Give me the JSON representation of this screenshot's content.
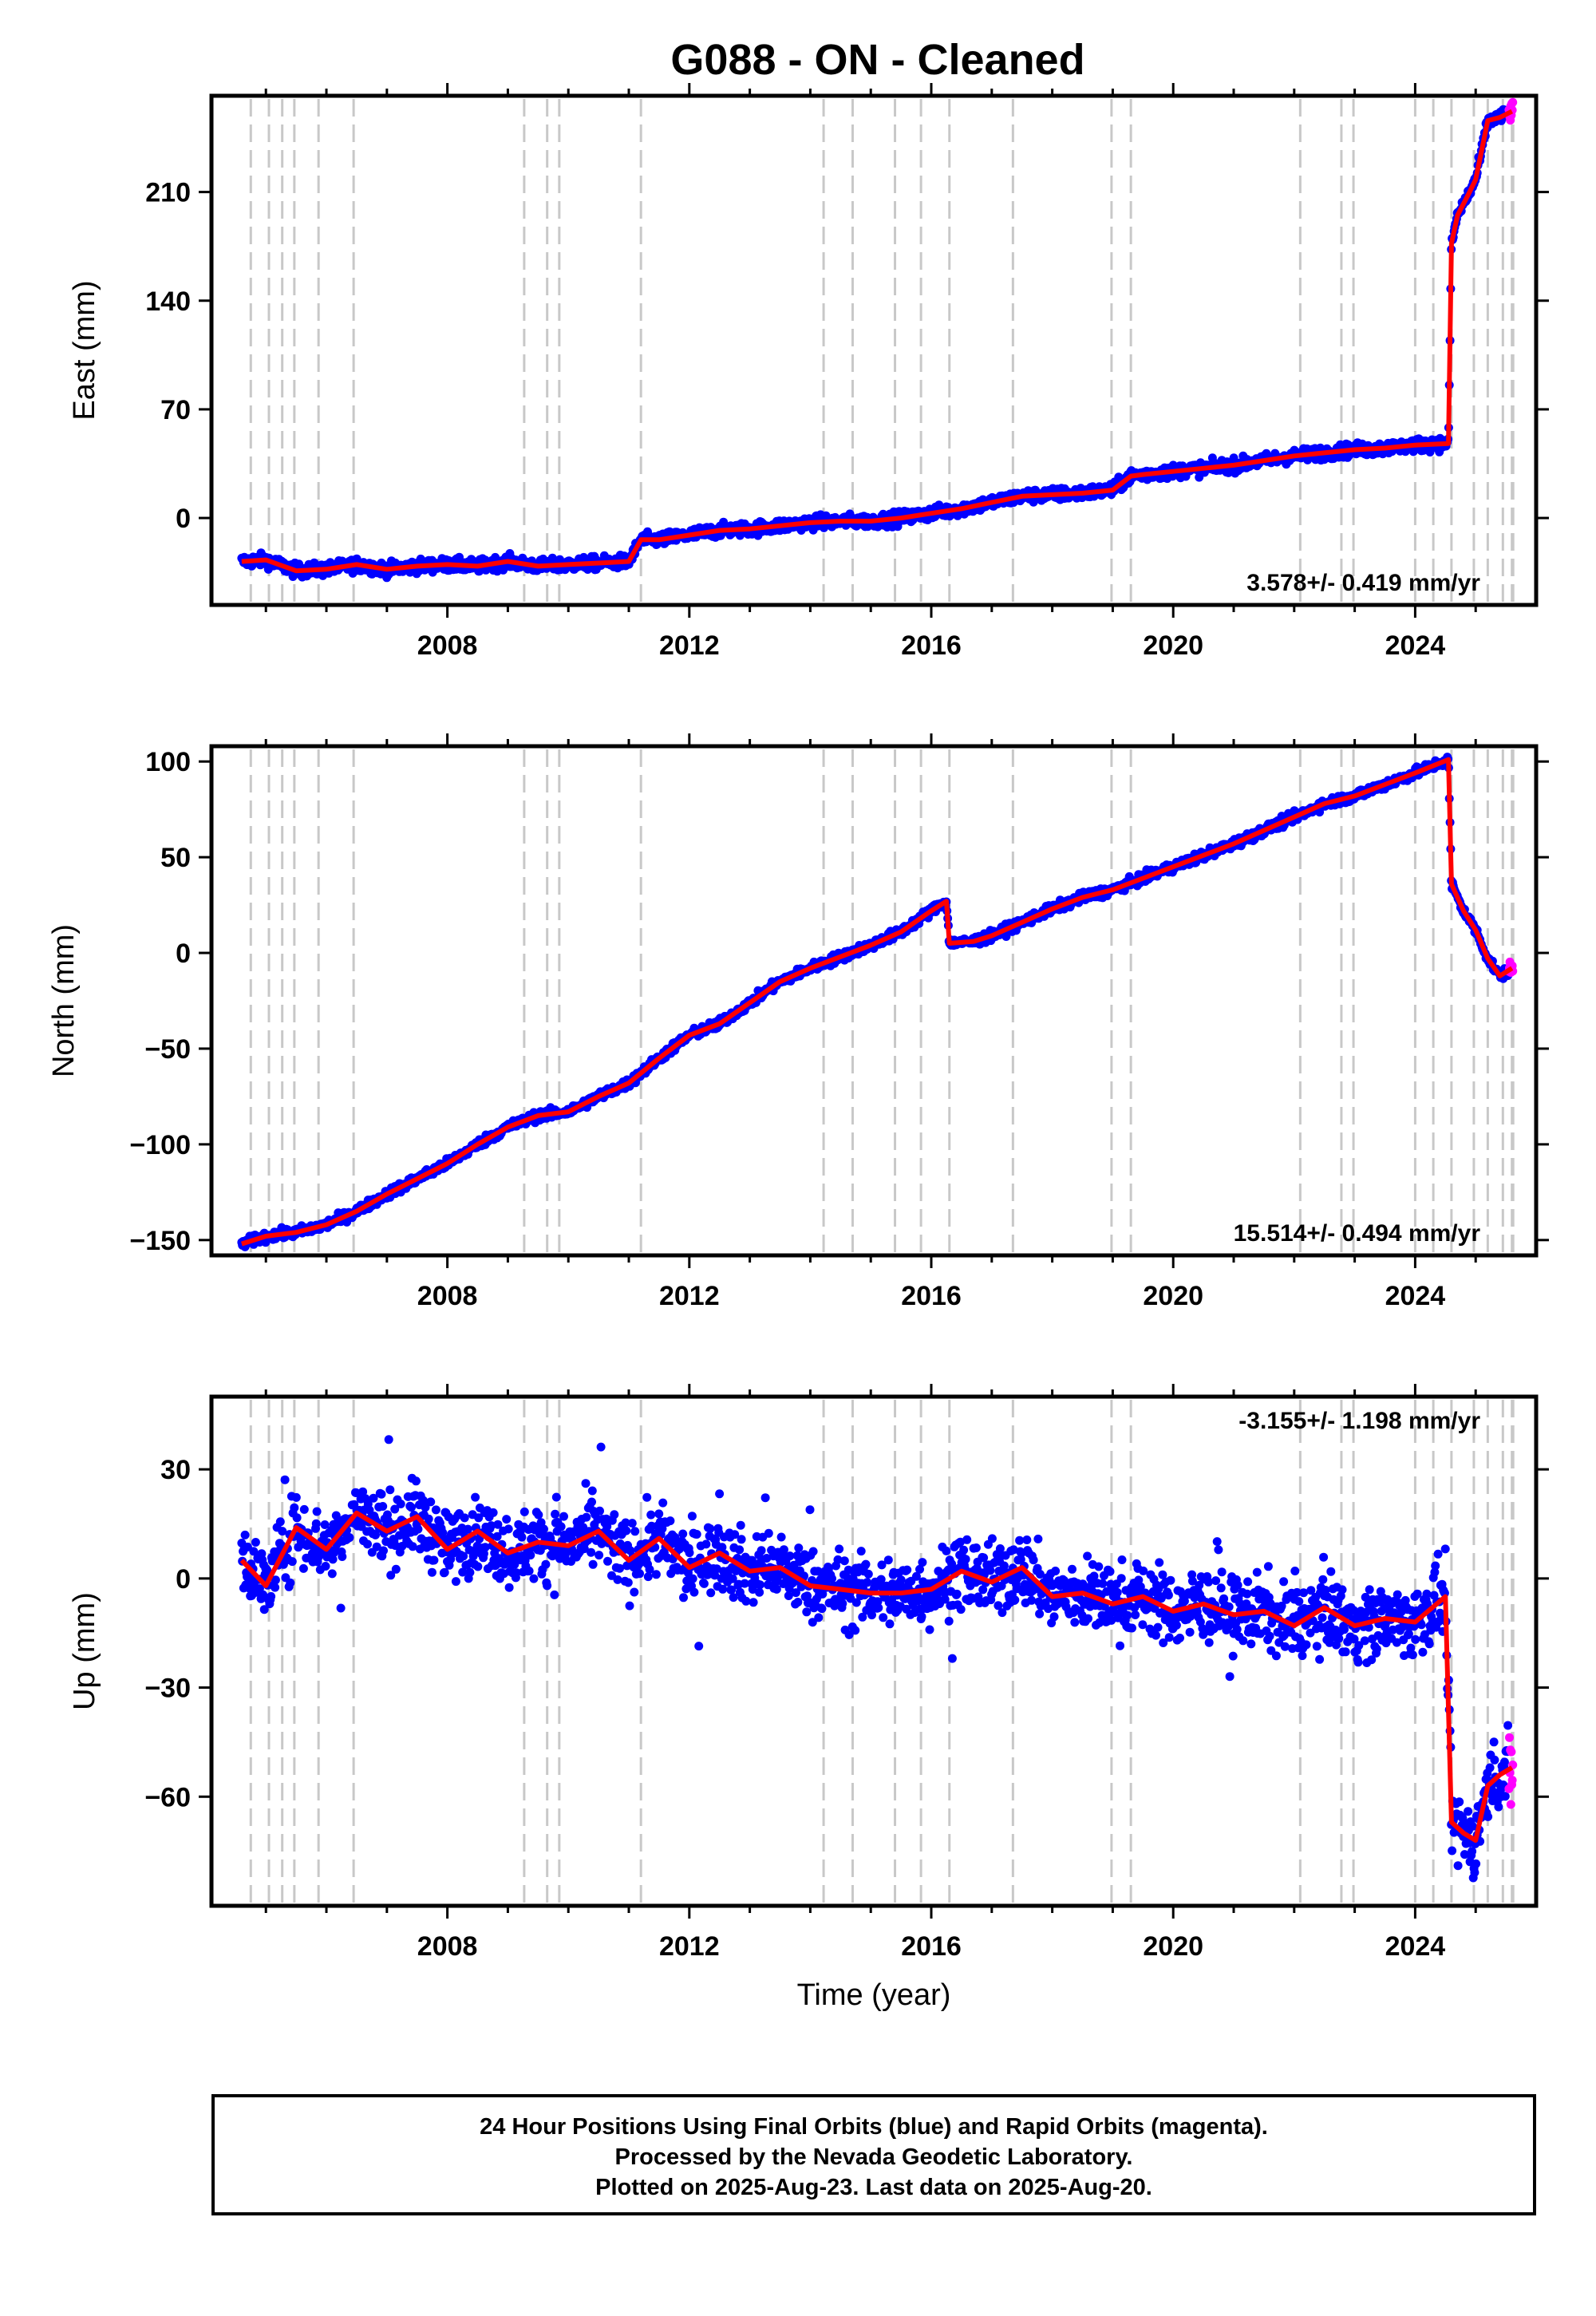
{
  "title": "G088  - ON - Cleaned",
  "xlabel": "Time (year)",
  "footer": {
    "line1": "24 Hour Positions Using Final Orbits (blue) and Rapid Orbits (magenta).",
    "line2": "Processed by the Nevada Geodetic Laboratory.",
    "line3": "Plotted on 2025-Aug-23. Last data on 2025-Aug-20."
  },
  "colors": {
    "final_orbits": "#0000ff",
    "rapid_orbits": "#ff00ff",
    "model": "#ff0000",
    "event_lines": "#c8c8c8"
  },
  "chart_data": [
    {
      "type": "scatter",
      "panel": "east",
      "ylabel": "East (mm)",
      "rate": "3.578+/- 0.419 mm/yr",
      "rate_position": "bottom-right",
      "xlim": [
        2004.1,
        2026.0
      ],
      "ylim": [
        -56,
        272
      ],
      "yticks": [
        0,
        70,
        140,
        210
      ],
      "xticks": [
        2008,
        2012,
        2016,
        2020,
        2024
      ],
      "grid": false,
      "event_lines": [
        2004.75,
        2005.05,
        2005.27,
        2005.47,
        2005.87,
        2006.45,
        2009.27,
        2009.65,
        2009.85,
        2011.2,
        2014.22,
        2014.7,
        2015.4,
        2015.83,
        2016.3,
        2017.35,
        2018.98,
        2019.3,
        2022.1,
        2022.78,
        2022.98,
        2024.0,
        2024.3,
        2024.6,
        2024.97,
        2025.2,
        2025.45,
        2025.6,
        2025.62
      ],
      "series": [
        {
          "x": [
            2004.6,
            2005.0,
            2005.5,
            2006.0,
            2006.5,
            2007.0,
            2007.5,
            2008.0,
            2008.5,
            2009.0,
            2009.5,
            2010.0,
            2010.5,
            2011.0,
            2011.2,
            2011.5,
            2012.0,
            2012.5,
            2013.0,
            2013.5,
            2014.0,
            2014.5,
            2015.0,
            2015.5,
            2016.0,
            2016.5,
            2017.0,
            2017.5,
            2018.0,
            2018.5,
            2019.0,
            2019.3,
            2019.5,
            2020.0,
            2020.5,
            2021.0,
            2021.5,
            2022.0,
            2022.5,
            2023.0,
            2023.5,
            2024.0,
            2024.55,
            2024.6,
            2024.7,
            2024.9,
            2025.0,
            2025.2,
            2025.4,
            2025.6
          ],
          "y": [
            -28,
            -27,
            -34,
            -33,
            -30,
            -33,
            -31,
            -30,
            -31,
            -28,
            -31,
            -30,
            -29,
            -28,
            -14,
            -14,
            -11,
            -8,
            -7,
            -5,
            -3,
            -2,
            -2,
            0,
            3,
            6,
            10,
            14,
            15,
            16,
            18,
            27,
            28,
            30,
            32,
            34,
            37,
            40,
            42,
            44,
            45,
            47,
            48,
            177,
            195,
            210,
            218,
            256,
            258,
            262
          ]
        }
      ]
    },
    {
      "type": "scatter",
      "panel": "north",
      "ylabel": "North (mm)",
      "rate": "15.514+/- 0.494 mm/yr",
      "rate_position": "bottom-right",
      "xlim": [
        2004.1,
        2026.0
      ],
      "ylim": [
        -158,
        108
      ],
      "yticks": [
        -150,
        -100,
        -50,
        0,
        50,
        100
      ],
      "xticks": [
        2008,
        2012,
        2016,
        2020,
        2024
      ],
      "grid": false,
      "event_lines": [
        2004.75,
        2005.05,
        2005.27,
        2005.47,
        2005.87,
        2006.45,
        2009.27,
        2009.65,
        2009.85,
        2011.2,
        2014.22,
        2014.7,
        2015.4,
        2015.83,
        2016.3,
        2017.35,
        2018.98,
        2019.3,
        2022.1,
        2022.78,
        2022.98,
        2024.0,
        2024.3,
        2024.6,
        2024.97,
        2025.2,
        2025.45,
        2025.6,
        2025.62
      ],
      "series": [
        {
          "x": [
            2004.6,
            2005.0,
            2005.5,
            2006.0,
            2006.5,
            2007.0,
            2007.5,
            2008.0,
            2008.5,
            2009.0,
            2009.5,
            2010.0,
            2010.5,
            2011.0,
            2011.5,
            2012.0,
            2012.5,
            2013.0,
            2013.5,
            2014.0,
            2014.5,
            2015.0,
            2015.5,
            2016.0,
            2016.25,
            2016.3,
            2016.7,
            2017.0,
            2017.5,
            2018.0,
            2018.5,
            2019.0,
            2019.5,
            2020.0,
            2020.5,
            2021.0,
            2021.5,
            2022.0,
            2022.5,
            2023.0,
            2023.5,
            2024.0,
            2024.55,
            2024.6,
            2024.8,
            2025.0,
            2025.2,
            2025.4,
            2025.6
          ],
          "y": [
            -152,
            -148,
            -146,
            -142,
            -135,
            -126,
            -118,
            -110,
            -100,
            -91,
            -85,
            -83,
            -75,
            -68,
            -55,
            -43,
            -37,
            -26,
            -15,
            -8,
            -2,
            4,
            11,
            22,
            27,
            5,
            6,
            9,
            16,
            23,
            29,
            33,
            39,
            45,
            51,
            57,
            64,
            71,
            78,
            82,
            88,
            94,
            101,
            36,
            22,
            12,
            -3,
            -12,
            -8
          ]
        }
      ]
    },
    {
      "type": "scatter",
      "panel": "up",
      "ylabel": "Up (mm)",
      "rate": "-3.155+/- 1.198 mm/yr",
      "rate_position": "top-right",
      "xlim": [
        2004.1,
        2026.0
      ],
      "ylim": [
        -90,
        50
      ],
      "yticks": [
        -60,
        -30,
        0,
        30
      ],
      "xticks": [
        2008,
        2012,
        2016,
        2020,
        2024
      ],
      "grid": false,
      "event_lines": [
        2004.75,
        2005.05,
        2005.27,
        2005.47,
        2005.87,
        2006.45,
        2009.27,
        2009.65,
        2009.85,
        2011.2,
        2014.22,
        2014.7,
        2015.4,
        2015.83,
        2016.3,
        2017.35,
        2018.98,
        2019.3,
        2022.1,
        2022.78,
        2022.98,
        2024.0,
        2024.3,
        2024.6,
        2024.97,
        2025.2,
        2025.45,
        2025.6,
        2025.62
      ],
      "series": [
        {
          "x": [
            2004.6,
            2005.0,
            2005.5,
            2006.0,
            2006.5,
            2007.0,
            2007.5,
            2008.0,
            2008.5,
            2009.0,
            2009.5,
            2010.0,
            2010.5,
            2011.0,
            2011.5,
            2012.0,
            2012.5,
            2013.0,
            2013.5,
            2014.0,
            2014.5,
            2015.0,
            2015.5,
            2016.0,
            2016.5,
            2017.0,
            2017.5,
            2018.0,
            2018.5,
            2019.0,
            2019.5,
            2020.0,
            2020.5,
            2021.0,
            2021.5,
            2022.0,
            2022.5,
            2023.0,
            2023.5,
            2024.0,
            2024.5,
            2024.6,
            2024.8,
            2025.0,
            2025.2,
            2025.4,
            2025.6
          ],
          "y": [
            5,
            -2,
            14,
            8,
            18,
            13,
            17,
            8,
            13,
            7,
            10,
            9,
            13,
            5,
            11,
            3,
            7,
            2,
            3,
            -2,
            -3,
            -4,
            -4,
            -3,
            2,
            -1,
            3,
            -5,
            -4,
            -7,
            -5,
            -9,
            -7,
            -10,
            -9,
            -13,
            -8,
            -13,
            -11,
            -12,
            -5,
            -67,
            -70,
            -72,
            -57,
            -54,
            -52
          ]
        }
      ]
    }
  ]
}
